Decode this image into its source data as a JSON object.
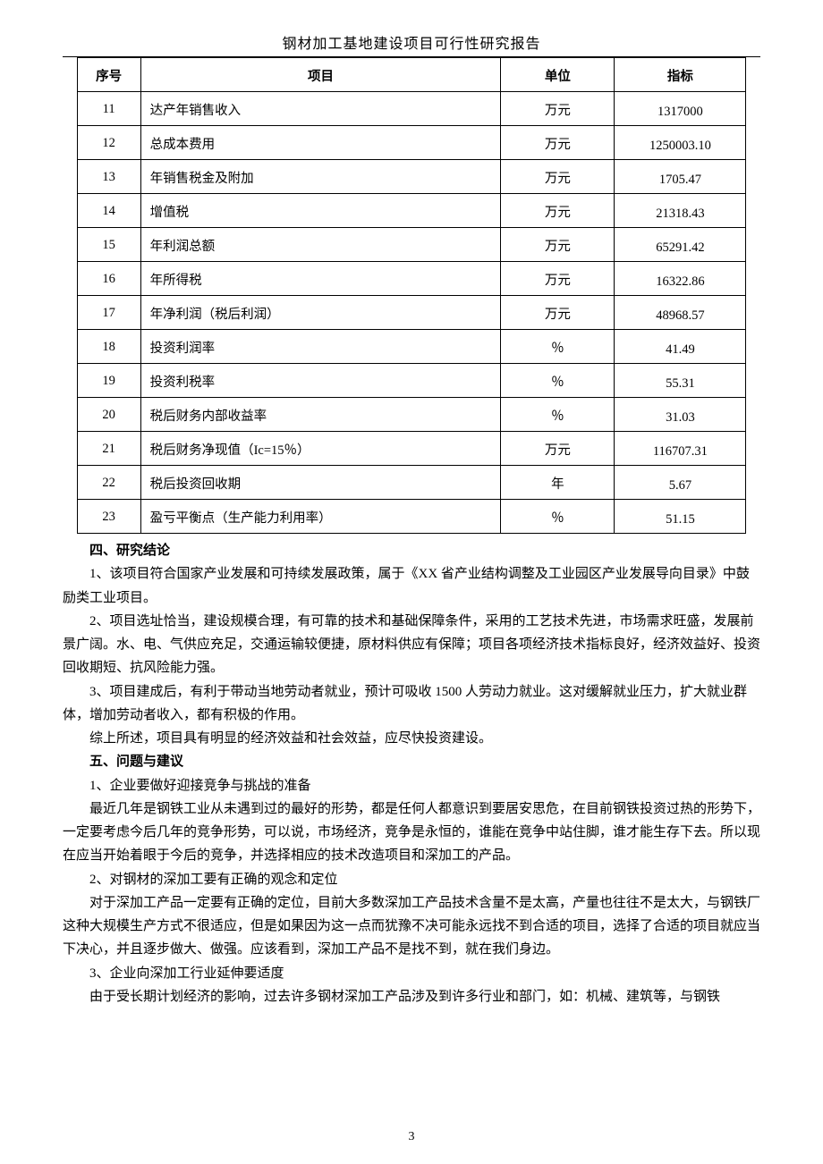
{
  "doc": {
    "title": "钢材加工基地建设项目可行性研究报告",
    "page_number": "3"
  },
  "table": {
    "headers": {
      "seq": "序号",
      "item": "项目",
      "unit": "单位",
      "value": "指标"
    },
    "col_widths": {
      "seq": 54,
      "unit": 110,
      "value": 130
    },
    "border_color": "#000000",
    "font_size": 14.5,
    "rows": [
      {
        "seq": "11",
        "item": "达产年销售收入",
        "unit": "万元",
        "value": "1317000"
      },
      {
        "seq": "12",
        "item": "总成本费用",
        "unit": "万元",
        "value": "1250003.10"
      },
      {
        "seq": "13",
        "item": "年销售税金及附加",
        "unit": "万元",
        "value": "1705.47"
      },
      {
        "seq": "14",
        "item": "增值税",
        "unit": "万元",
        "value": "21318.43"
      },
      {
        "seq": "15",
        "item": "年利润总额",
        "unit": "万元",
        "value": "65291.42"
      },
      {
        "seq": "16",
        "item": "年所得税",
        "unit": "万元",
        "value": "16322.86"
      },
      {
        "seq": "17",
        "item": "年净利润（税后利润）",
        "unit": "万元",
        "value": "48968.57"
      },
      {
        "seq": "18",
        "item": "投资利润率",
        "unit": "％",
        "value": "41.49"
      },
      {
        "seq": "19",
        "item": "投资利税率",
        "unit": "％",
        "value": "55.31"
      },
      {
        "seq": "20",
        "item": "税后财务内部收益率",
        "unit": "％",
        "value": "31.03"
      },
      {
        "seq": "21",
        "item": "税后财务净现值（Ic=15％）",
        "unit": "万元",
        "value": "116707.31"
      },
      {
        "seq": "22",
        "item": "税后投资回收期",
        "unit": "年",
        "value": "5.67"
      },
      {
        "seq": "23",
        "item": "盈亏平衡点（生产能力利用率）",
        "unit": "％",
        "value": "51.15"
      }
    ]
  },
  "sections": {
    "s4": {
      "heading": "四、研究结论",
      "p1": "1、该项目符合国家产业发展和可持续发展政策，属于《XX 省产业结构调整及工业园区产业发展导向目录》中鼓励类工业项目。",
      "p2": "2、项目选址恰当，建设规模合理，有可靠的技术和基础保障条件，采用的工艺技术先进，市场需求旺盛，发展前景广阔。水、电、气供应充足，交通运输较便捷，原材料供应有保障；项目各项经济技术指标良好，经济效益好、投资回收期短、抗风险能力强。",
      "p3": "3、项目建成后，有利于带动当地劳动者就业，预计可吸收 1500 人劳动力就业。这对缓解就业压力，扩大就业群体，增加劳动者收入，都有积极的作用。",
      "p4": "综上所述，项目具有明显的经济效益和社会效益，应尽快投资建设。"
    },
    "s5": {
      "heading": "五、问题与建议",
      "i1t": "1、企业要做好迎接竞争与挑战的准备",
      "i1b": "最近几年是钢铁工业从未遇到过的最好的形势，都是任何人都意识到要居安思危，在目前钢铁投资过热的形势下，一定要考虑今后几年的竞争形势，可以说，市场经济，竞争是永恒的，谁能在竞争中站住脚，谁才能生存下去。所以现在应当开始着眼于今后的竞争，并选择相应的技术改造项目和深加工的产品。",
      "i2t": "2、对钢材的深加工要有正确的观念和定位",
      "i2b": "对于深加工产品一定要有正确的定位，目前大多数深加工产品技术含量不是太高，产量也往往不是太大，与钢铁厂这种大规模生产方式不很适应，但是如果因为这一点而犹豫不决可能永远找不到合适的项目，选择了合适的项目就应当下决心，并且逐步做大、做强。应该看到，深加工产品不是找不到，就在我们身边。",
      "i3t": "3、企业向深加工行业延伸要适度",
      "i3b": "由于受长期计划经济的影响，过去许多钢材深加工产品涉及到许多行业和部门，如：机械、建筑等，与钢铁"
    }
  },
  "style": {
    "body_font_size": 15,
    "body_line_height": 1.75,
    "text_color": "#000000",
    "bg_color": "#ffffff"
  }
}
